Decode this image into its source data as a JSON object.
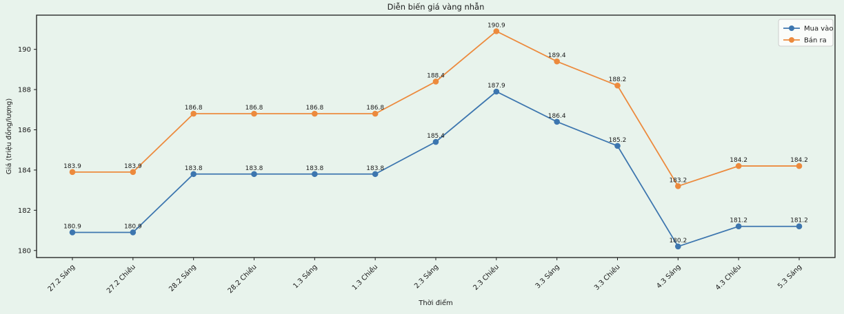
{
  "figure": {
    "background_color": "#e8f3ec",
    "spine_color": "#1a1a1a",
    "text_color": "#1a1a1a",
    "legend_background": "#fdfdfd",
    "legend_border": "#cccccc"
  },
  "chart_data": {
    "type": "line",
    "title": "Diễn biến giá vàng nhẫn",
    "xlabel": "Thời điểm",
    "ylabel": "Giá (triệu đồng/lượng)",
    "categories": [
      "27.2 Sáng",
      "27.2 Chiều",
      "28.2 Sáng",
      "28.2 Chiều",
      "1.3 Sáng",
      "1.3 Chiều",
      "2.3 Sáng",
      "2.3 Chiều",
      "3.3 Sáng",
      "3.3 Chiều",
      "4.3 Sáng",
      "4.3 Chiều",
      "5.3 Sáng"
    ],
    "series": [
      {
        "name": "Mua vào",
        "color": "#3d76af",
        "values": [
          180.9,
          180.9,
          183.8,
          183.8,
          183.8,
          183.8,
          185.4,
          187.9,
          186.4,
          185.2,
          180.2,
          181.2,
          181.2
        ]
      },
      {
        "name": "Bán ra",
        "color": "#ec8a3d",
        "values": [
          183.9,
          183.9,
          186.8,
          186.8,
          186.8,
          186.8,
          188.4,
          190.9,
          189.4,
          188.2,
          183.2,
          184.2,
          184.2
        ]
      }
    ],
    "yticks": [
      180,
      182,
      184,
      186,
      188,
      190
    ],
    "ylim": [
      179.65,
      191.7
    ],
    "grid": false,
    "legend_position": "upper right",
    "data_labels": true,
    "x_tick_rotation": 45
  }
}
